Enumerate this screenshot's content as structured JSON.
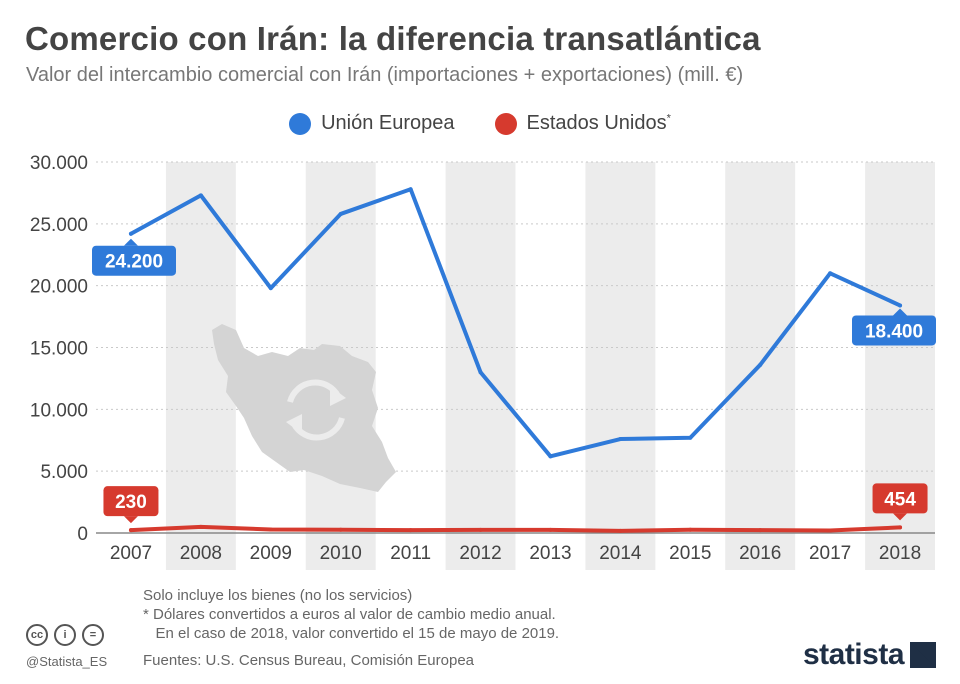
{
  "header": {
    "title": "Comercio con Irán: la diferencia transatlántica",
    "subtitle": "Valor del intercambio comercial con Irán (importaciones + exportaciones) (mill. €)"
  },
  "legend": {
    "eu_label": "Unión Europea",
    "us_label": "Estados Unidos",
    "us_marker": "*"
  },
  "colors": {
    "eu": "#2f7ad9",
    "us": "#d63a2e",
    "band": "#ececec",
    "grid": "#c9c9c9"
  },
  "chart_data": {
    "type": "line",
    "categories": [
      "2007",
      "2008",
      "2009",
      "2010",
      "2011",
      "2012",
      "2013",
      "2014",
      "2015",
      "2016",
      "2017",
      "2018"
    ],
    "series": [
      {
        "name": "Unión Europea",
        "values": [
          24200,
          27300,
          19800,
          25800,
          27800,
          13000,
          6200,
          7600,
          7700,
          13600,
          21000,
          18400
        ]
      },
      {
        "name": "Estados Unidos",
        "values": [
          230,
          500,
          280,
          260,
          230,
          250,
          250,
          170,
          260,
          230,
          200,
          454
        ]
      }
    ],
    "ylim": [
      0,
      30000
    ],
    "yticks": [
      0,
      5000,
      10000,
      15000,
      20000,
      25000,
      30000
    ],
    "ytick_labels": [
      "0",
      "5.000",
      "10.000",
      "15.000",
      "20.000",
      "25.000",
      "30.000"
    ],
    "annotations": [
      {
        "series": 0,
        "index": 0,
        "text": "24.200"
      },
      {
        "series": 0,
        "index": 11,
        "text": "18.400"
      },
      {
        "series": 1,
        "index": 0,
        "text": "230"
      },
      {
        "series": 1,
        "index": 11,
        "text": "454"
      }
    ],
    "grid": true,
    "alternating_bands": true,
    "legend_position": "top-center"
  },
  "notes": {
    "line1": "Solo incluye los bienes (no los servicios)",
    "line2": "* Dólares convertidos a euros al valor de cambio medio anual.",
    "line3": "   En el caso de 2018, valor convertido el 15 de mayo de 2019."
  },
  "footer": {
    "handle": "@Statista_ES",
    "sources": "Fuentes: U.S. Census Bureau, Comisión Europea",
    "brand": "statista",
    "cc_icons": [
      "cc",
      "i",
      "="
    ]
  }
}
